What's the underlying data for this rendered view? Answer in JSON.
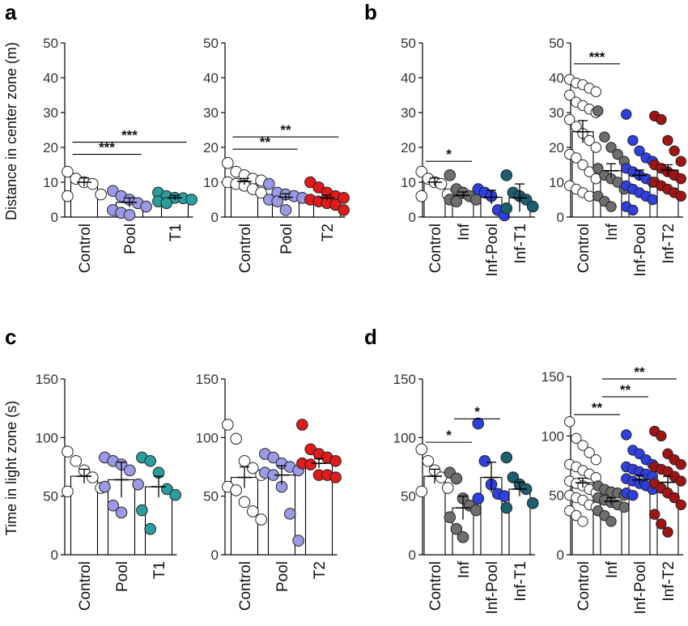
{
  "figure": {
    "panel_labels": [
      "a",
      "b",
      "c",
      "d"
    ],
    "ylabels": {
      "top": "Distance in center zone (m)",
      "bottom": "Time in light zone (s)"
    }
  },
  "colors": {
    "control": "#ffffff",
    "pool": "#9a9ae6",
    "t1": "#2a9d9d",
    "t2": "#e01b1b",
    "inf": "#6e6e6e",
    "inf_pool": "#2f3fe0",
    "inf_t1": "#1b5e6e",
    "inf_t2": "#a01414"
  },
  "chart_data": [
    {
      "id": "a1",
      "panel": "a",
      "type": "bar",
      "title": "",
      "xlabel": "",
      "ylabel": "Distance in center zone (m)",
      "ylim": [
        0,
        50
      ],
      "yticks": [
        0,
        10,
        20,
        30,
        40,
        50
      ],
      "categories": [
        "Control",
        "Pool",
        "T1"
      ],
      "fill_keys": [
        "control",
        "pool",
        "t1"
      ],
      "means": [
        10,
        4.2,
        5.5
      ],
      "sem": [
        1.2,
        1.3,
        0.7
      ],
      "points": [
        [
          13,
          11,
          10,
          9.5,
          6.5,
          6
        ],
        [
          7.5,
          6,
          5,
          4,
          3,
          2,
          1.2,
          0.6
        ],
        [
          7,
          6,
          5.5,
          5.4,
          5,
          4.5,
          4
        ]
      ],
      "significance": [
        {
          "from": 0,
          "to": 1,
          "label": "***",
          "y": 18
        },
        {
          "from": 0,
          "to": 2,
          "label": "***",
          "y": 21.5
        }
      ]
    },
    {
      "id": "a2",
      "panel": "a",
      "type": "bar",
      "title": "",
      "xlabel": "",
      "ylabel": "",
      "ylim": [
        0,
        50
      ],
      "yticks": [
        0,
        10,
        20,
        30,
        40,
        50
      ],
      "categories": [
        "Control",
        "Pool",
        "T2"
      ],
      "fill_keys": [
        "control",
        "pool",
        "t2"
      ],
      "means": [
        10.2,
        5.7,
        5.5
      ],
      "sem": [
        0.9,
        1,
        0.8
      ],
      "points": [
        [
          15.5,
          13,
          12,
          11,
          10.5,
          10,
          9.5,
          9,
          8,
          7
        ],
        [
          9.5,
          7,
          6.5,
          6,
          5.5,
          5,
          4.5,
          2
        ],
        [
          10,
          8.5,
          7,
          6,
          5.5,
          5,
          4.5,
          4,
          3.5,
          2
        ]
      ],
      "significance": [
        {
          "from": 0,
          "to": 1,
          "label": "**",
          "y": 19.5
        },
        {
          "from": 0,
          "to": 2,
          "label": "**",
          "y": 23
        }
      ]
    },
    {
      "id": "b1",
      "panel": "b",
      "type": "bar",
      "title": "",
      "xlabel": "",
      "ylabel": "",
      "ylim": [
        0,
        50
      ],
      "yticks": [
        0,
        10,
        20,
        30,
        40,
        50
      ],
      "categories": [
        "Control",
        "Inf",
        "Inf-Pool",
        "Inf-T1"
      ],
      "fill_keys": [
        "control",
        "inf",
        "inf_pool",
        "inf_t1"
      ],
      "means": [
        10,
        6.2,
        5.7,
        5.5
      ],
      "sem": [
        1.2,
        1,
        2,
        4
      ],
      "points": [
        [
          13,
          11,
          10,
          9.5,
          6.5,
          6
        ],
        [
          12,
          8,
          7,
          6,
          5,
          5,
          4.5
        ],
        [
          8,
          7,
          6,
          2,
          0.5
        ],
        [
          12,
          7,
          6,
          5,
          3,
          2.5
        ]
      ],
      "significance": [
        {
          "from": 0,
          "to": 1,
          "label": "*",
          "y": 16
        }
      ]
    },
    {
      "id": "b2",
      "panel": "b",
      "type": "bar",
      "title": "",
      "xlabel": "",
      "ylabel": "",
      "ylim": [
        0,
        50
      ],
      "yticks": [
        0,
        10,
        20,
        30,
        40,
        50
      ],
      "categories": [
        "Control",
        "Inf",
        "Inf-Pool",
        "Inf-T2"
      ],
      "fill_keys": [
        "control",
        "inf",
        "inf_pool",
        "inf_t2"
      ],
      "means": [
        24.5,
        13.3,
        12,
        13.5
      ],
      "sem": [
        3.2,
        2,
        1.5,
        1.5
      ],
      "points": [
        [
          39.5,
          38.5,
          38,
          37,
          36,
          35,
          33,
          32,
          31,
          30,
          28,
          26,
          24,
          22,
          20,
          18,
          17,
          15,
          13,
          11,
          9,
          8,
          7,
          6
        ],
        [
          30.5,
          23,
          20,
          18,
          16,
          14,
          12,
          11,
          10,
          8,
          6,
          4.5,
          3
        ],
        [
          29.5,
          22,
          19,
          17,
          16,
          14,
          13,
          12,
          11,
          10,
          9,
          8,
          7,
          6,
          5,
          3,
          2
        ],
        [
          29,
          28,
          22,
          19,
          16,
          15,
          14,
          13,
          12,
          11,
          10,
          9,
          8,
          7,
          6
        ]
      ],
      "significance": [
        {
          "from": 0,
          "to": 1,
          "label": "***",
          "y": 44
        }
      ]
    },
    {
      "id": "c1",
      "panel": "c",
      "type": "bar",
      "title": "",
      "xlabel": "",
      "ylabel": "Time in light zone (s)",
      "ylim": [
        0,
        150
      ],
      "yticks": [
        0,
        50,
        100,
        150
      ],
      "categories": [
        "Control",
        "Pool",
        "T1"
      ],
      "fill_keys": [
        "control",
        "pool",
        "t1"
      ],
      "means": [
        67,
        64,
        58
      ],
      "sem": [
        6,
        15,
        9
      ],
      "points": [
        [
          88,
          80,
          72,
          66,
          57,
          54
        ],
        [
          83,
          80,
          77,
          72,
          60,
          58,
          42,
          36
        ],
        [
          83,
          80,
          70,
          56,
          51,
          38,
          22
        ]
      ],
      "significance": []
    },
    {
      "id": "c2",
      "panel": "c",
      "type": "bar",
      "title": "",
      "xlabel": "",
      "ylabel": "",
      "ylim": [
        0,
        150
      ],
      "yticks": [
        0,
        50,
        100,
        150
      ],
      "categories": [
        "Control",
        "Pool",
        "T2"
      ],
      "fill_keys": [
        "control",
        "pool",
        "t2"
      ],
      "means": [
        66,
        68,
        78
      ],
      "sem": [
        9,
        8,
        4
      ],
      "points": [
        [
          111,
          99,
          80,
          74,
          68,
          58,
          55,
          45,
          37,
          30
        ],
        [
          86,
          83,
          78,
          75,
          72,
          70,
          68,
          58,
          35,
          12
        ],
        [
          111,
          90,
          86,
          83,
          80,
          78,
          77,
          68,
          68,
          66
        ]
      ],
      "significance": []
    },
    {
      "id": "d1",
      "panel": "d",
      "type": "bar",
      "title": "",
      "xlabel": "",
      "ylabel": "",
      "ylim": [
        0,
        150
      ],
      "yticks": [
        0,
        50,
        100,
        150
      ],
      "categories": [
        "Control",
        "Inf",
        "Inf-Pool",
        "Inf-T1"
      ],
      "fill_keys": [
        "control",
        "inf",
        "inf_pool",
        "inf_t1"
      ],
      "means": [
        67,
        40,
        66,
        56
      ],
      "sem": [
        6,
        10,
        13,
        6
      ],
      "points": [
        [
          90,
          80,
          72,
          66,
          57,
          54
        ],
        [
          70,
          65,
          48,
          42,
          38,
          32,
          22,
          15
        ],
        [
          112,
          80,
          60,
          52,
          50,
          48
        ],
        [
          83,
          66,
          60,
          56,
          44,
          40
        ]
      ],
      "significance": [
        {
          "from": 0,
          "to": 1,
          "label": "*",
          "y": 96
        },
        {
          "from": 1,
          "to": 2,
          "label": "*",
          "y": 116
        }
      ]
    },
    {
      "id": "d2",
      "panel": "d",
      "type": "bar",
      "title": "",
      "xlabel": "",
      "ylabel": "",
      "ylim": [
        0,
        150
      ],
      "yticks": [
        0,
        50,
        100,
        150
      ],
      "categories": [
        "Control",
        "Inf",
        "Inf-Pool",
        "Inf-T2"
      ],
      "fill_keys": [
        "control",
        "inf",
        "inf_pool",
        "inf_t2"
      ],
      "means": [
        60.5,
        45,
        63,
        61
      ],
      "sem": [
        4,
        3,
        4,
        5
      ],
      "points": [
        [
          112,
          98,
          92,
          86,
          80,
          76,
          74,
          71,
          68,
          65,
          62,
          60,
          58,
          55,
          52,
          50,
          48,
          46,
          42,
          40,
          37,
          33,
          28
        ],
        [
          58,
          55,
          53,
          52,
          50,
          48,
          46,
          44,
          42,
          40,
          37,
          33,
          28
        ],
        [
          101,
          88,
          85,
          80,
          76,
          74,
          72,
          70,
          68,
          66,
          64,
          62,
          60,
          58,
          55,
          52,
          50
        ],
        [
          104,
          100,
          85,
          80,
          76,
          74,
          72,
          70,
          66,
          62,
          60,
          56,
          52,
          48,
          42,
          34,
          26,
          19
        ]
      ],
      "significance": [
        {
          "from": 0,
          "to": 1,
          "label": "**",
          "y": 118
        },
        {
          "from": 1,
          "to": 2,
          "label": "**",
          "y": 133
        },
        {
          "from": 1,
          "to": 3,
          "label": "**",
          "y": 148
        }
      ]
    }
  ]
}
